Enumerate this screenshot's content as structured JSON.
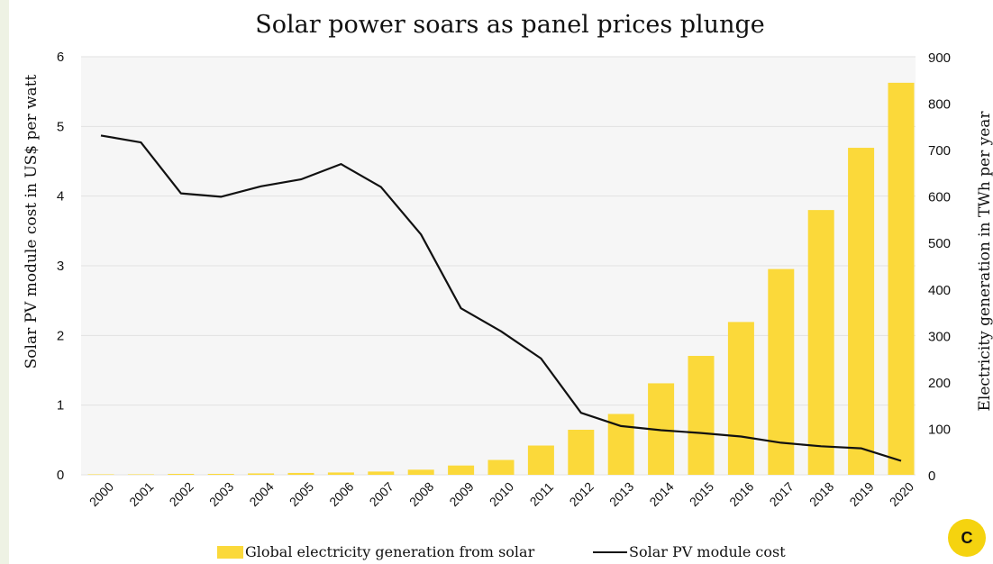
{
  "chart_data": {
    "type": "bar",
    "title": "Solar power soars as panel prices plunge",
    "ylabel_left": "Solar PV module cost in US$ per watt",
    "ylabel_right": "Electricity generation in TWh per year",
    "categories": [
      "2000",
      "2001",
      "2002",
      "2003",
      "2004",
      "2005",
      "2006",
      "2007",
      "2008",
      "2009",
      "2010",
      "2011",
      "2012",
      "2013",
      "2014",
      "2015",
      "2016",
      "2017",
      "2018",
      "2019",
      "2020"
    ],
    "ylim_left": [
      0,
      6
    ],
    "yticks_left": [
      0,
      1,
      2,
      3,
      4,
      5,
      6
    ],
    "ylim_right": [
      0,
      900
    ],
    "yticks_right": [
      0,
      100,
      200,
      300,
      400,
      500,
      600,
      700,
      800,
      900
    ],
    "grid": true,
    "legend_position": "bottom",
    "series": [
      {
        "name": "Global electricity generation from solar",
        "kind": "bar",
        "axis": "right",
        "color": "#fbd93a",
        "values": [
          1,
          1,
          2,
          2,
          3,
          4,
          5,
          7,
          11,
          20,
          32,
          63,
          97,
          131,
          197,
          256,
          329,
          443,
          570,
          704,
          844
        ]
      },
      {
        "name": "Solar PV module cost",
        "kind": "line",
        "axis": "left",
        "color": "#111111",
        "values": [
          4.87,
          4.77,
          4.04,
          3.99,
          4.14,
          4.24,
          4.46,
          4.13,
          3.45,
          2.39,
          2.06,
          1.67,
          0.89,
          0.7,
          0.64,
          0.6,
          0.55,
          0.46,
          0.41,
          0.38,
          0.2
        ]
      }
    ]
  },
  "logo": {
    "letter": "C",
    "color": "#f5d30f"
  }
}
